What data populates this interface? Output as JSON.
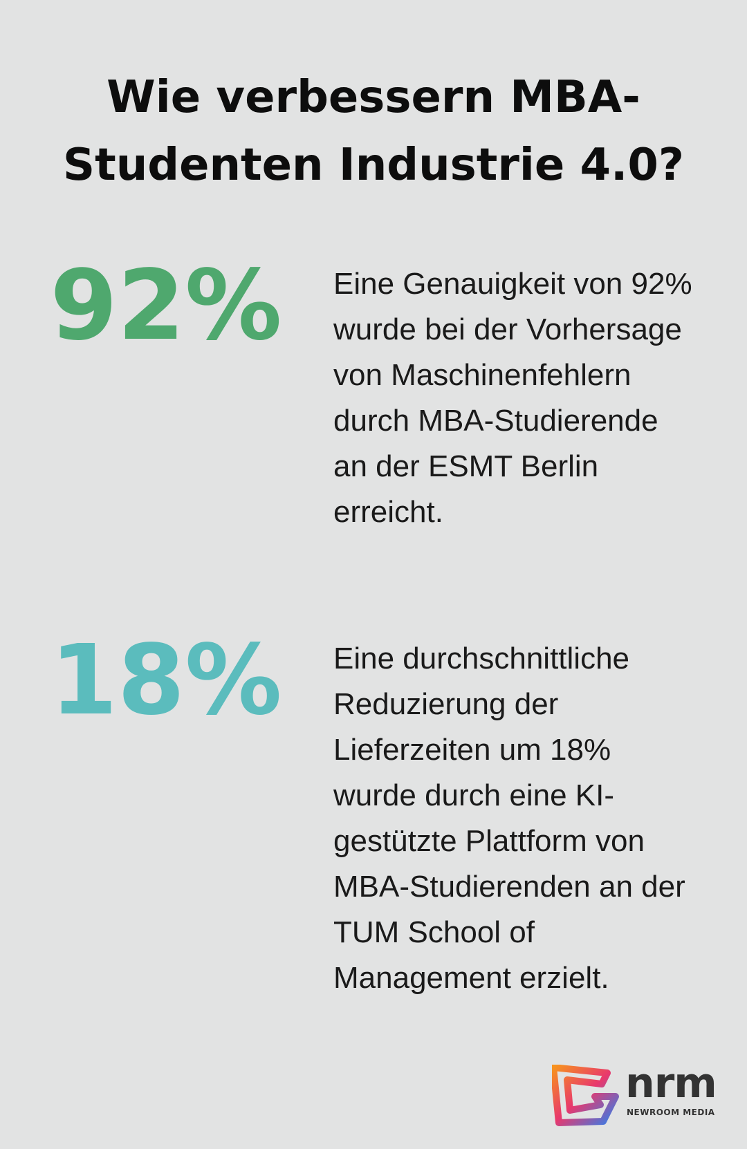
{
  "header": {
    "title": "Wie verbessern MBA-Studenten Industrie 4.0?"
  },
  "stats": [
    {
      "value": "92%",
      "text": "Eine Genauigkeit von 92% wurde bei der Vorhersage von Maschinenfehlern durch MBA-Studierende an der ESMT Berlin erreicht.",
      "color": "#4fa86e"
    },
    {
      "value": "18%",
      "text": "Eine durchschnittliche Reduzierung der Lieferzeiten um 18% wurde durch eine KI-gestützte Plattform von MBA-Studierenden an der TUM School of Management erzielt.",
      "color": "#5bbcbd"
    }
  ],
  "logo": {
    "name": "nrm",
    "subtitle": "NEWROOM MEDIA"
  }
}
